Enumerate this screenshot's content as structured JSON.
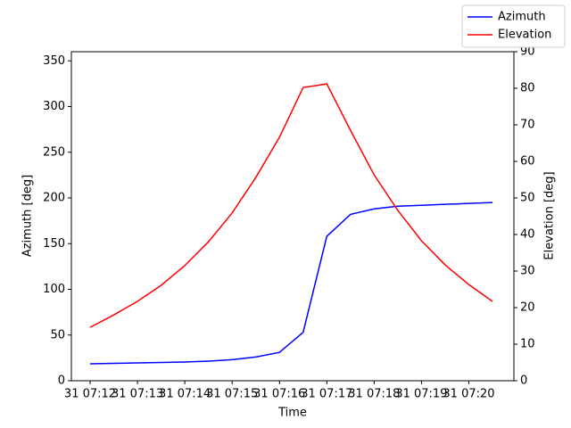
{
  "chart_data": {
    "type": "line",
    "x_label": "Time",
    "y_label": "Azimuth [deg]",
    "y2_label": "Elevation [deg]",
    "categories": [
      "31 07:12",
      null,
      "31 07:13",
      null,
      "31 07:14",
      null,
      "31 07:15",
      null,
      "31 07:16",
      null,
      "31 07:17",
      null,
      "31 07:18",
      null,
      "31 07:19",
      null,
      "31 07:20",
      null
    ],
    "series": [
      {
        "name": "Azimuth",
        "color": "#0000ff",
        "axis": "y",
        "values": [
          18.5,
          19,
          19.5,
          20,
          20.5,
          21.5,
          23,
          26,
          31,
          53,
          158,
          182,
          188,
          191,
          192,
          193,
          194,
          195
        ]
      },
      {
        "name": "Elevation",
        "color": "#ff0000",
        "axis": "y2",
        "values": [
          14.6,
          18.0,
          21.7,
          26.1,
          31.5,
          38.0,
          45.9,
          55.6,
          66.6,
          80.2,
          81.2,
          68.5,
          56.3,
          46.6,
          38.3,
          31.7,
          26.3,
          21.7
        ]
      }
    ],
    "ylim": [
      0,
      360
    ],
    "yticks": [
      0,
      50,
      100,
      150,
      200,
      250,
      300,
      350
    ],
    "y2lim": [
      0,
      90
    ],
    "y2ticks": [
      0,
      10,
      20,
      30,
      40,
      50,
      60,
      70,
      80,
      90
    ],
    "legend": "upper right"
  }
}
